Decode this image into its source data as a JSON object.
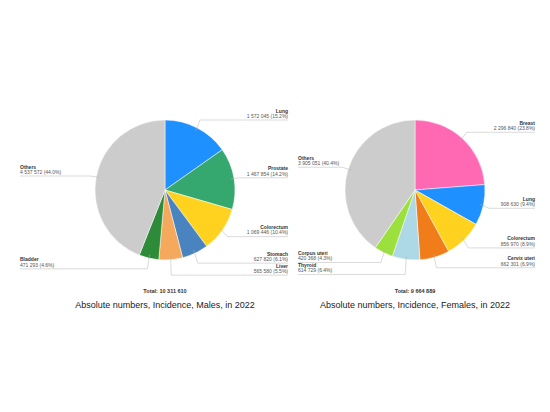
{
  "chart_data": [
    {
      "type": "pie",
      "title": "Absolute numbers, Incidence, Males, in 2022",
      "annotations": [
        "Total: 10 311 610"
      ],
      "categories": [
        "Lung",
        "Prostate",
        "Colorectum",
        "Stomach",
        "Liver",
        "Bladder",
        "Others"
      ],
      "values": [
        1572045,
        1467854,
        1069446,
        627820,
        565580,
        471293,
        4537572
      ],
      "value_labels": [
        "1 572 045 (15.2%)",
        "1 467 854 (14.2%)",
        "1 069 446 (10.4%)",
        "627 820 (6.1%)",
        "565 580 (5.5%)",
        "471 293 (4.6%)",
        "4 537 572 (44.0%)"
      ],
      "colors": [
        "#1e90ff",
        "#34a86e",
        "#ffd21f",
        "#4a84c0",
        "#f4a95c",
        "#2e8b3a",
        "#cccccc"
      ],
      "data_labels": true
    },
    {
      "type": "pie",
      "title": "Absolute numbers, Incidence, Females, in 2022",
      "annotations": [
        "Total: 9 664 889"
      ],
      "categories": [
        "Breast",
        "Lung",
        "Colorectum",
        "Cervix uteri",
        "Thyroid",
        "Corpus uteri",
        "Others"
      ],
      "values": [
        2296840,
        908630,
        856970,
        662301,
        614729,
        420368,
        3905051
      ],
      "value_labels": [
        "2 296 840 (23.8%)",
        "908 630 (9.4%)",
        "856 970 (8.9%)",
        "662 301 (6.9%)",
        "614 729 (6.4%)",
        "420 368 (4.3%)",
        "3 905 051 (40.4%)"
      ],
      "colors": [
        "#ff69b4",
        "#1e90ff",
        "#ffd21f",
        "#f07d1a",
        "#add8e6",
        "#9be03c",
        "#cccccc"
      ],
      "data_labels": true
    }
  ]
}
